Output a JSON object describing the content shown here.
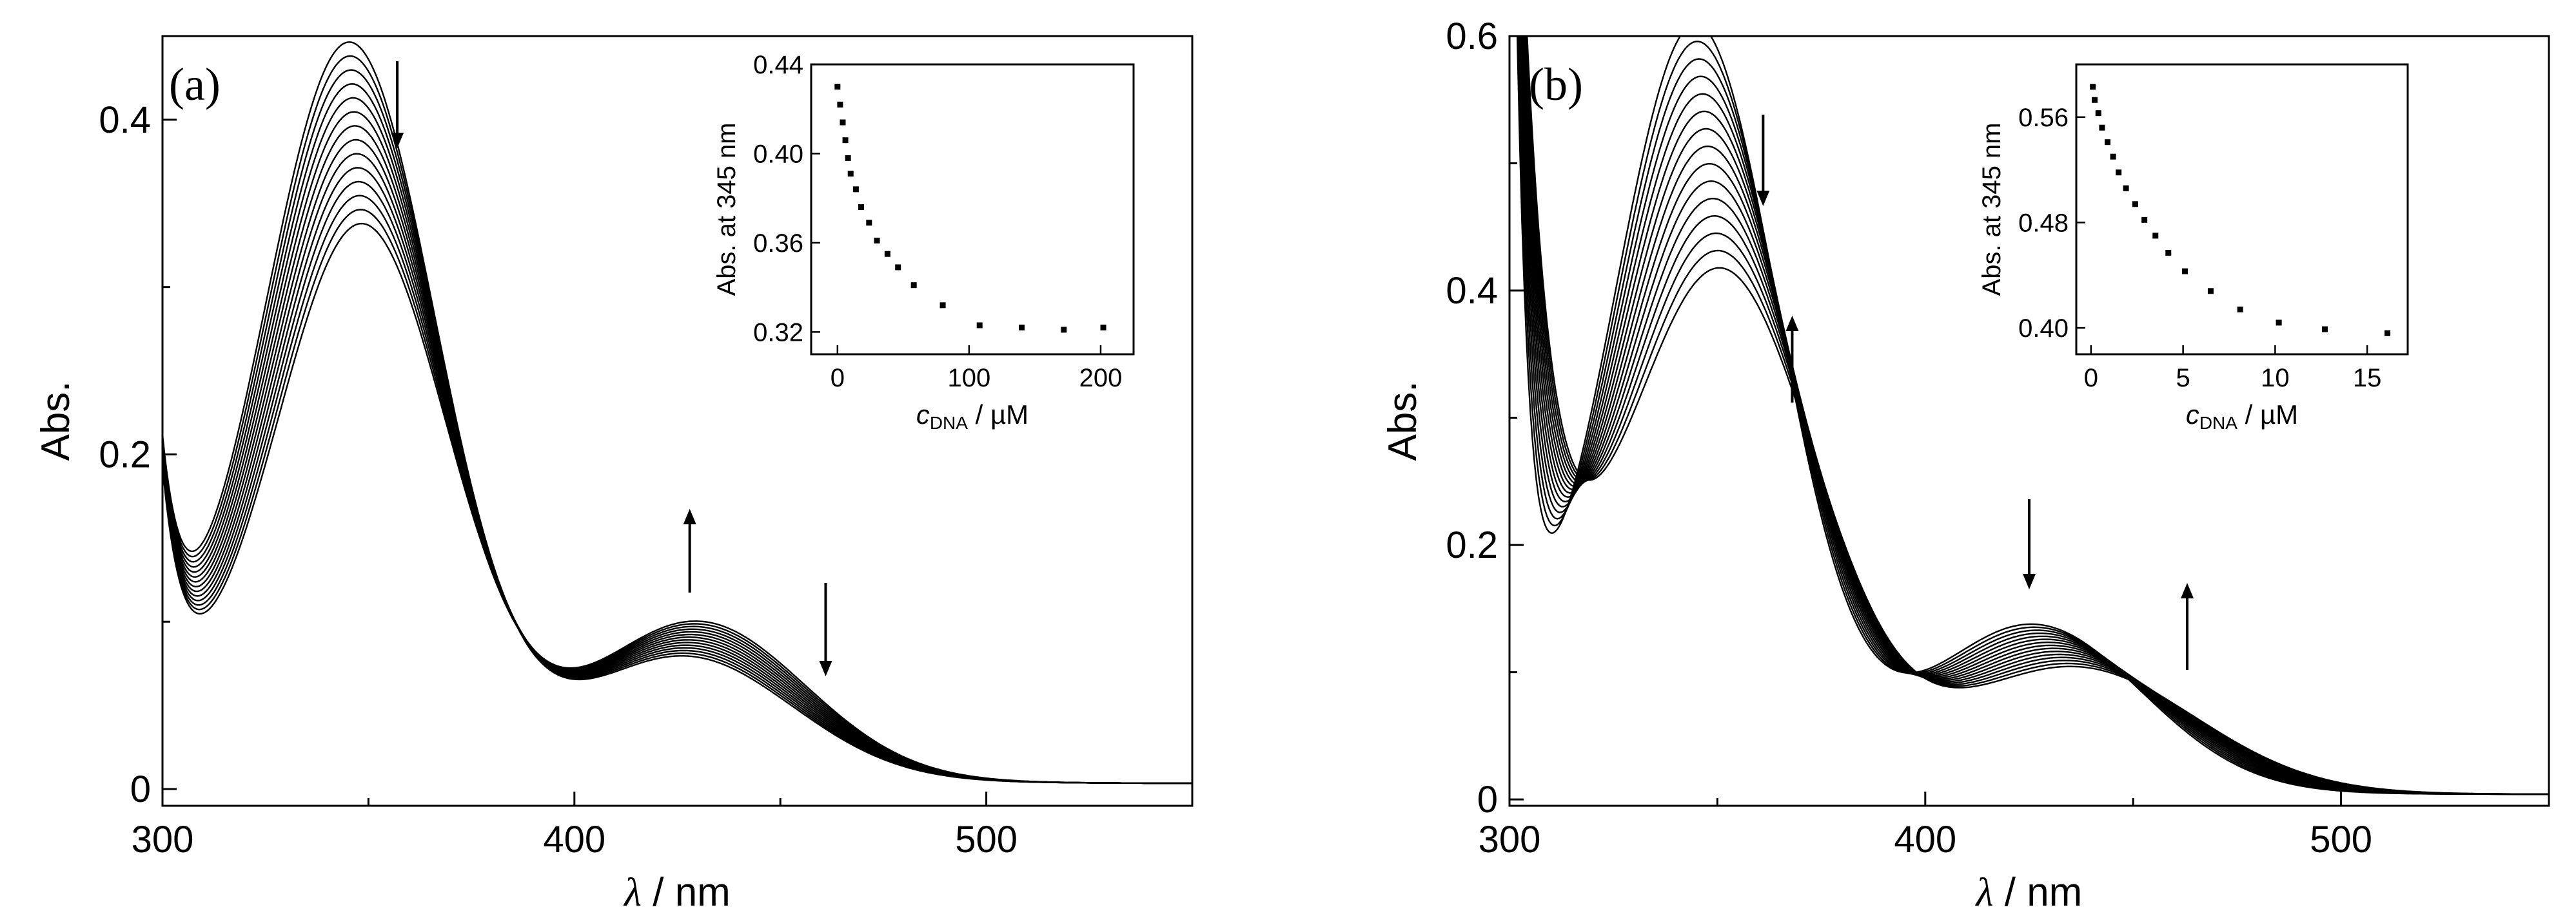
{
  "chart_data": [
    {
      "panel_label": "(a)",
      "type": "line",
      "xlabel_symbol": "λ",
      "xlabel_unit": " / nm",
      "ylabel": "Abs.",
      "xlim": [
        300,
        550
      ],
      "ylim": [
        -0.01,
        0.45
      ],
      "x_ticks": [
        300,
        400,
        500
      ],
      "y_ticks": [
        0,
        0.2,
        0.4
      ],
      "y_tick_labels": [
        "0",
        "0.2",
        "0.4"
      ],
      "curve_count": 14,
      "trend_arrows": [
        {
          "x": 357,
          "direction": "down"
        },
        {
          "x": 428,
          "direction": "up"
        },
        {
          "x": 461,
          "direction": "down"
        }
      ],
      "inset": {
        "type": "scatter",
        "ylabel": "Abs. at 345 nm",
        "xlabel_var": "c",
        "xlabel_sub": "DNA",
        "xlabel_unit": " / µM",
        "xlim": [
          -20,
          225
        ],
        "ylim": [
          0.31,
          0.44
        ],
        "x_ticks": [
          0,
          100,
          200
        ],
        "y_ticks": [
          0.32,
          0.36,
          0.4,
          0.44
        ],
        "y_tick_labels": [
          "0.32",
          "0.36",
          "0.40",
          "0.44"
        ],
        "x": [
          0,
          2,
          4,
          6,
          8,
          10,
          14,
          18,
          24,
          30,
          38,
          46,
          58,
          80,
          108,
          140,
          172,
          202
        ],
        "y": [
          0.43,
          0.422,
          0.414,
          0.406,
          0.398,
          0.391,
          0.384,
          0.376,
          0.369,
          0.361,
          0.355,
          0.349,
          0.341,
          0.332,
          0.323,
          0.322,
          0.321,
          0.322
        ]
      }
    },
    {
      "panel_label": "(b)",
      "type": "line",
      "xlabel_symbol": "λ",
      "xlabel_unit": " / nm",
      "ylabel": "Abs.",
      "xlim": [
        300,
        550
      ],
      "ylim": [
        -0.005,
        0.6
      ],
      "x_ticks": [
        300,
        400,
        500
      ],
      "y_ticks": [
        0,
        0.2,
        0.4,
        0.6
      ],
      "y_tick_labels": [
        "0",
        "0.2",
        "0.4",
        "0.6"
      ],
      "curve_count": 15,
      "trend_arrows": [
        {
          "x": 361,
          "direction": "down"
        },
        {
          "x": 368,
          "direction": "up"
        },
        {
          "x": 425,
          "direction": "down"
        },
        {
          "x": 463,
          "direction": "up"
        }
      ],
      "inset": {
        "type": "scatter",
        "ylabel": "Abs. at 345 nm",
        "xlabel_var": "c",
        "xlabel_sub": "DNA",
        "xlabel_unit": " / µM",
        "xlim": [
          -0.8,
          17.2
        ],
        "ylim": [
          0.38,
          0.6
        ],
        "x_ticks": [
          0,
          5,
          10,
          15
        ],
        "y_ticks": [
          0.4,
          0.48,
          0.56
        ],
        "y_tick_labels": [
          "0.40",
          "0.48",
          "0.56"
        ],
        "x": [
          0.1,
          0.2,
          0.4,
          0.6,
          0.9,
          1.2,
          1.5,
          1.9,
          2.4,
          2.9,
          3.5,
          4.2,
          5.1,
          6.5,
          8.1,
          10.2,
          12.7,
          16.1
        ],
        "y": [
          0.583,
          0.573,
          0.563,
          0.552,
          0.541,
          0.53,
          0.518,
          0.506,
          0.494,
          0.482,
          0.47,
          0.457,
          0.443,
          0.428,
          0.414,
          0.404,
          0.399,
          0.396
        ]
      }
    }
  ]
}
